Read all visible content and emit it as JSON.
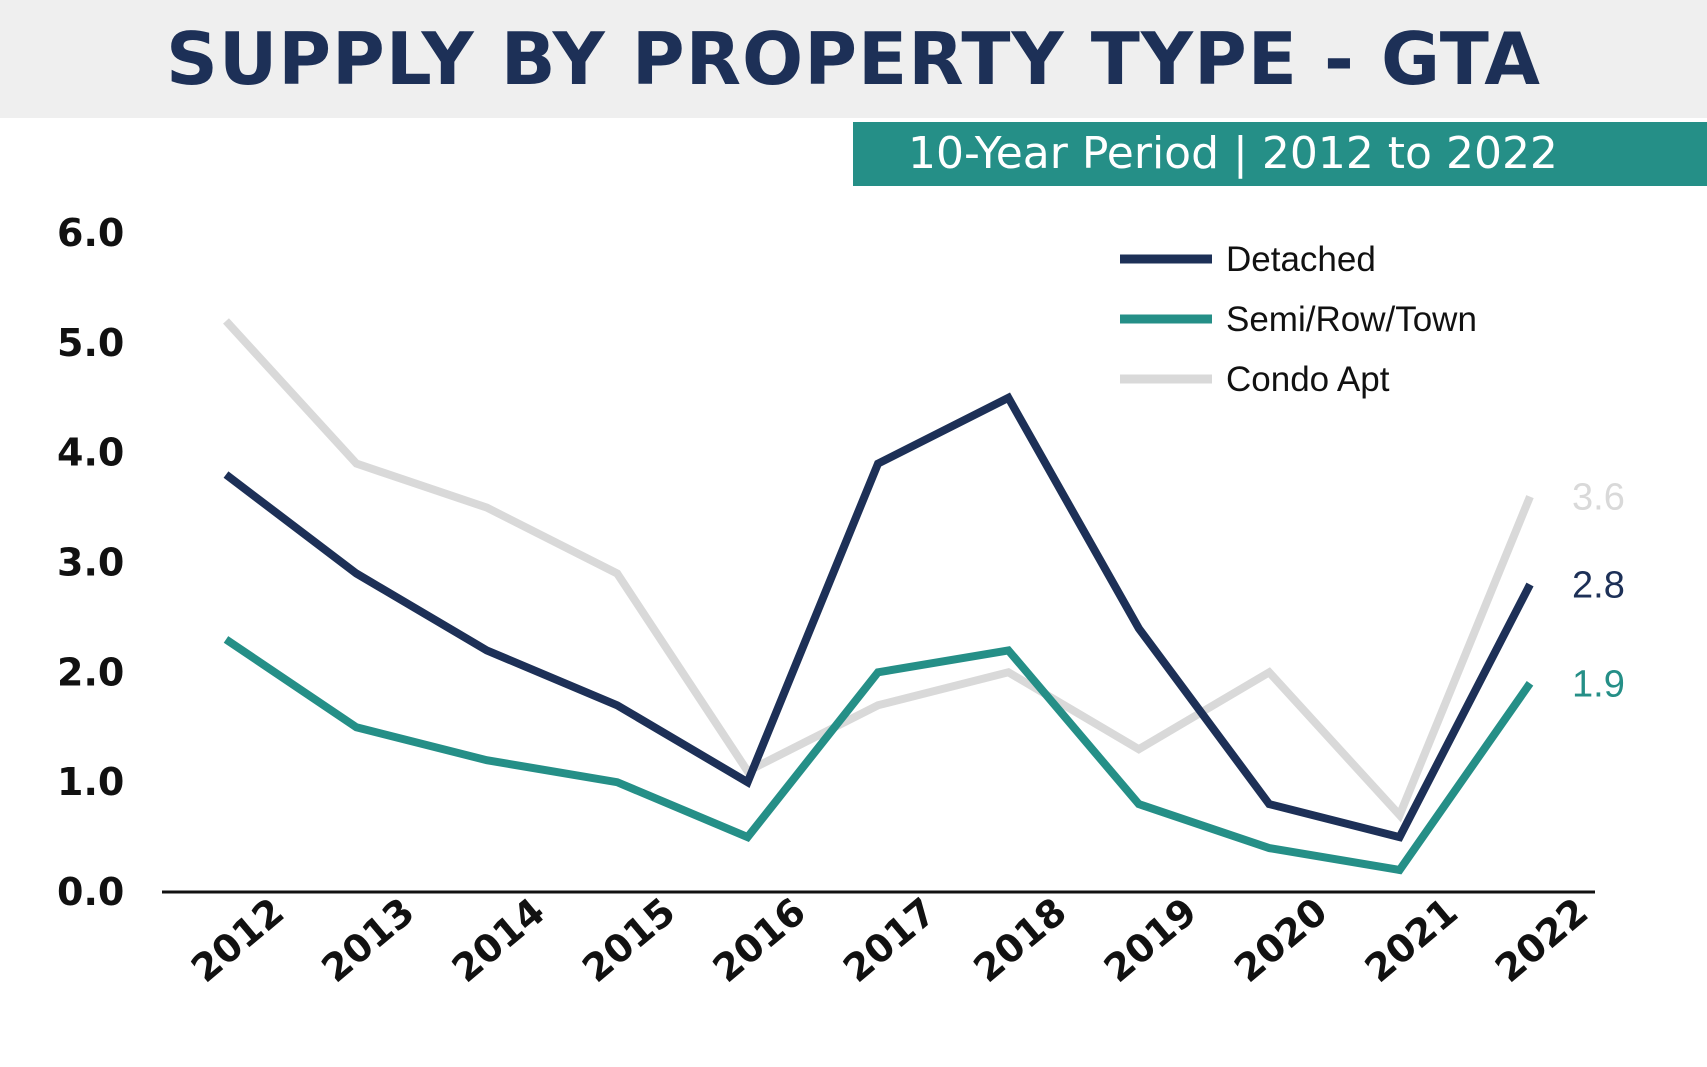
{
  "header": {
    "title": "SUPPLY BY PROPERTY TYPE - GTA",
    "subtitle": "10-Year Period | 2012 to 2022"
  },
  "colors": {
    "title_text": "#1d3057",
    "title_band": "#efefef",
    "subtitle_band": "#258f87",
    "axis": "#111111"
  },
  "chart_data": {
    "type": "line",
    "title": "SUPPLY BY PROPERTY TYPE - GTA",
    "subtitle": "10-Year Period | 2012 to 2022",
    "xlabel": "",
    "ylabel": "",
    "ylim": [
      0,
      6
    ],
    "yticks": [
      "0.0",
      "1.0",
      "2.0",
      "3.0",
      "4.0",
      "5.0",
      "6.0"
    ],
    "categories": [
      "2012",
      "2013",
      "2014",
      "2015",
      "2016",
      "2017",
      "2018",
      "2019",
      "2020",
      "2021",
      "2022"
    ],
    "grid": false,
    "legend_position": "top-right",
    "series": [
      {
        "name": "Condo Apt",
        "color": "#d9d9d9",
        "values": [
          5.2,
          3.9,
          3.5,
          2.9,
          1.1,
          1.7,
          2.0,
          1.3,
          2.0,
          0.7,
          3.6
        ],
        "end_label": "3.6"
      },
      {
        "name": "Detached",
        "color": "#1d3057",
        "values": [
          3.8,
          2.9,
          2.2,
          1.7,
          1.0,
          3.9,
          4.5,
          2.4,
          0.8,
          0.5,
          2.8
        ],
        "end_label": "2.8"
      },
      {
        "name": "Semi/Row/Town",
        "color": "#258f87",
        "values": [
          2.3,
          1.5,
          1.2,
          1.0,
          0.5,
          2.0,
          2.2,
          0.8,
          0.4,
          0.2,
          1.9
        ],
        "end_label": "1.9"
      }
    ],
    "legend_order": [
      "Detached",
      "Semi/Row/Town",
      "Condo Apt"
    ]
  }
}
